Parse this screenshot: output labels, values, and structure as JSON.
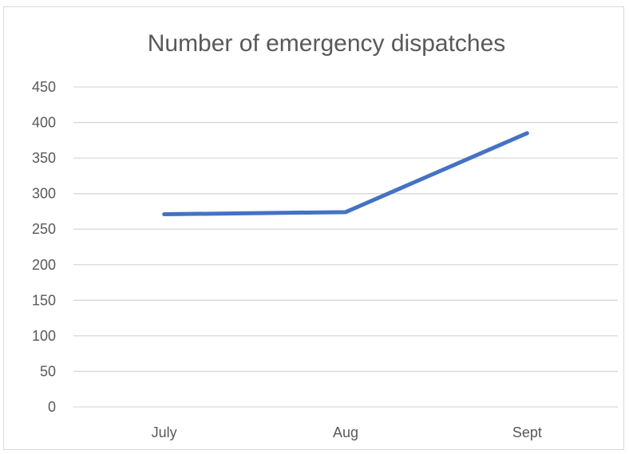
{
  "chart_data": {
    "type": "line",
    "title": "Number of emergency dispatches",
    "xlabel": "",
    "ylabel": "",
    "categories": [
      "July",
      "Aug",
      "Sept"
    ],
    "series": [
      {
        "values": [
          271,
          274,
          385
        ],
        "color": "#4472c4"
      }
    ],
    "ylim": [
      0,
      450
    ],
    "yticks": [
      0,
      50,
      100,
      150,
      200,
      250,
      300,
      350,
      400,
      450
    ],
    "grid": true,
    "legend": "none"
  }
}
